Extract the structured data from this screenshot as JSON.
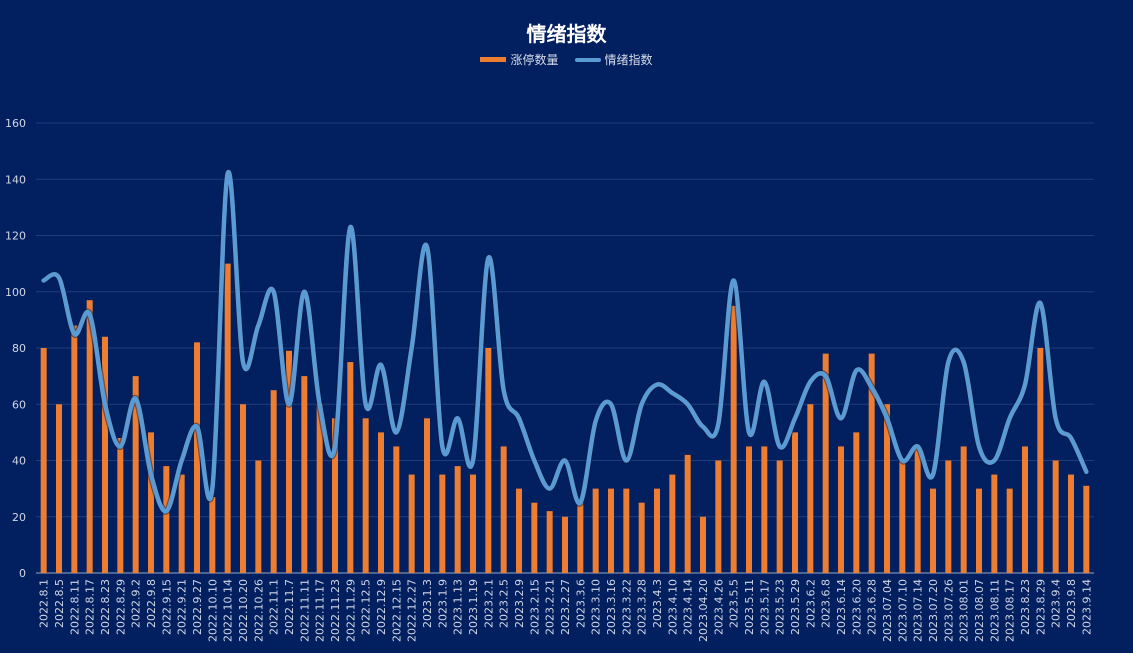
{
  "chart_data": {
    "type": "bar+line",
    "title": "情绪指数",
    "xlabel": "",
    "ylabel": "",
    "ylim": [
      0,
      160
    ],
    "yticks": [
      0,
      20,
      40,
      60,
      80,
      100,
      120,
      140,
      160
    ],
    "grid": true,
    "legend_position": "top-center",
    "categories": [
      "2022.8.1",
      "2022.8.5",
      "2022.8.11",
      "2022.8.17",
      "2022.8.23",
      "2022.8.29",
      "2022.9.2",
      "2022.9.8",
      "2022.9.15",
      "2022.9.21",
      "2022.9.27",
      "2022.10.10",
      "2022.10.14",
      "2022.10.20",
      "2022.10.26",
      "2022.11.1",
      "2022.11.7",
      "2022.11.11",
      "2022.11.17",
      "2022.11.23",
      "2022.11.29",
      "2022.12.5",
      "2022.12.9",
      "2022.12.15",
      "2022.12.27",
      "2023.1.3",
      "2023.1.9",
      "2023.1.13",
      "2023.1.19",
      "2023.2.1",
      "2023.2.5",
      "2023.2.9",
      "2023.2.15",
      "2023.2.21",
      "2023.2.27",
      "2023.3.6",
      "2023.3.10",
      "2023.3.16",
      "2023.3.22",
      "2023.3.28",
      "2023.4.3",
      "2023.4.10",
      "2023.4.14",
      "2023.04.20",
      "2023.4.26",
      "2023.5.5",
      "2023.5.11",
      "2023.5.17",
      "2023.5.23",
      "2023.5.29",
      "2023.6.2",
      "2023.6.8",
      "2023.6.14",
      "2023.6.20",
      "2023.6.28",
      "2023.07.04",
      "2023.07.10",
      "2023.07.14",
      "2023.07.20",
      "2023.07.26",
      "2023.08.01",
      "2023.08.07",
      "2023.08.11",
      "2023.08.17",
      "2023.8.23",
      "2023.8.29",
      "2023.9.4",
      "2023.9.8",
      "2023.9.14"
    ],
    "series": [
      {
        "name": "涨停数量",
        "type": "bar",
        "color": "#ed7d31",
        "values": [
          80,
          60,
          88,
          97,
          84,
          48,
          70,
          50,
          38,
          35,
          82,
          27,
          110,
          60,
          40,
          65,
          79,
          70,
          60,
          55,
          75,
          55,
          50,
          45,
          35,
          55,
          35,
          38,
          35,
          80,
          45,
          30,
          25,
          22,
          20,
          25,
          30,
          30,
          30,
          25,
          30,
          35,
          42,
          20,
          40,
          95,
          45,
          45,
          40,
          50,
          60,
          78,
          45,
          50,
          78,
          60,
          40,
          45,
          30,
          40,
          45,
          30,
          35,
          30,
          45,
          80,
          40,
          35,
          31
        ]
      },
      {
        "name": "情绪指数",
        "type": "line",
        "color": "#5b9bd5",
        "values": [
          104,
          105,
          85,
          92,
          60,
          45,
          62,
          35,
          22,
          40,
          52,
          30,
          142,
          75,
          88,
          100,
          60,
          100,
          60,
          45,
          123,
          60,
          74,
          50,
          80,
          116,
          45,
          55,
          40,
          112,
          65,
          55,
          40,
          30,
          40,
          25,
          54,
          60,
          40,
          60,
          67,
          64,
          60,
          52,
          53,
          104,
          50,
          68,
          45,
          55,
          68,
          70,
          55,
          72,
          66,
          55,
          40,
          45,
          35,
          75,
          75,
          45,
          40,
          55,
          67,
          96,
          55,
          48,
          36
        ]
      }
    ]
  }
}
